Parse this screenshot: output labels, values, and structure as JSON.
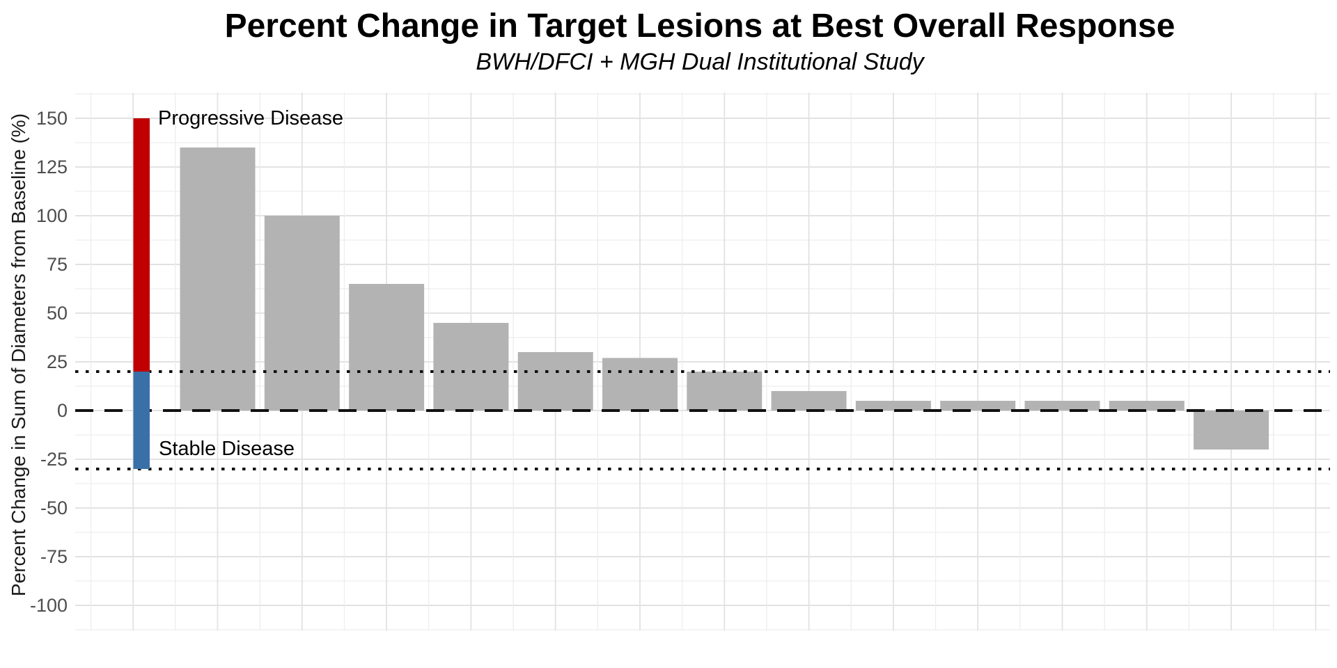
{
  "header": {
    "title": "Percent Change in Target Lesions at Best Overall Response",
    "subtitle": "BWH/DFCI + MGH Dual Institutional Study"
  },
  "y_axis": {
    "label": "Percent Change in Sum of Diameters from Baseline (%)",
    "tick_values": [
      150,
      125,
      100,
      75,
      50,
      25,
      0,
      -25,
      -50,
      -75,
      -100
    ],
    "tick_labels": [
      "150",
      "125",
      "100",
      "75",
      "50",
      "25",
      "0",
      "-25",
      "-50",
      "-75",
      "-100"
    ]
  },
  "annotations": {
    "progressive_label": "Progressive Disease",
    "stable_label": "Stable Disease",
    "reference_bar": {
      "progressive_segment": {
        "from": 20,
        "to": 150
      },
      "stable_segment": {
        "from": -30,
        "to": 20
      }
    }
  },
  "colors": {
    "bar": "#b3b3b3",
    "progressive_red": "#c00000",
    "stable_blue": "#3a70a8",
    "reference_line": "#111111",
    "grid_major": "#e2e2e2",
    "grid_minor": "#ededed",
    "tick_text": "#4d4d4d",
    "background": "#ffffff"
  },
  "chart_data": {
    "type": "bar",
    "title": "Percent Change in Target Lesions at Best Overall Response",
    "subtitle": "BWH/DFCI + MGH Dual Institutional Study",
    "xlabel": "",
    "ylabel": "Percent Change in Sum of Diameters from Baseline (%)",
    "categories": [
      "",
      "",
      "",
      "",
      "",
      "",
      "",
      "",
      "",
      "",
      "",
      "",
      ""
    ],
    "values": [
      135,
      100,
      65,
      45,
      30,
      27,
      20,
      10,
      5,
      5,
      5,
      5,
      -20
    ],
    "ylim": [
      -112.5,
      162.5
    ],
    "y_major_step": 25,
    "y_minor_step": 12.5,
    "grid": true,
    "x_tick_labels_shown": false,
    "legend_position": "none",
    "reference_lines": [
      {
        "y": 20,
        "style": "dotted",
        "meaning": "Progressive Disease threshold (+20%)"
      },
      {
        "y": 0,
        "style": "dashed",
        "meaning": "Baseline (0%)"
      },
      {
        "y": -30,
        "style": "dotted",
        "meaning": "Stable Disease threshold (-30%)"
      }
    ],
    "annotation_bar": {
      "red_range": [
        20,
        150
      ],
      "blue_range": [
        -30,
        20
      ],
      "red_label": "Progressive Disease",
      "blue_label": "Stable Disease"
    }
  }
}
